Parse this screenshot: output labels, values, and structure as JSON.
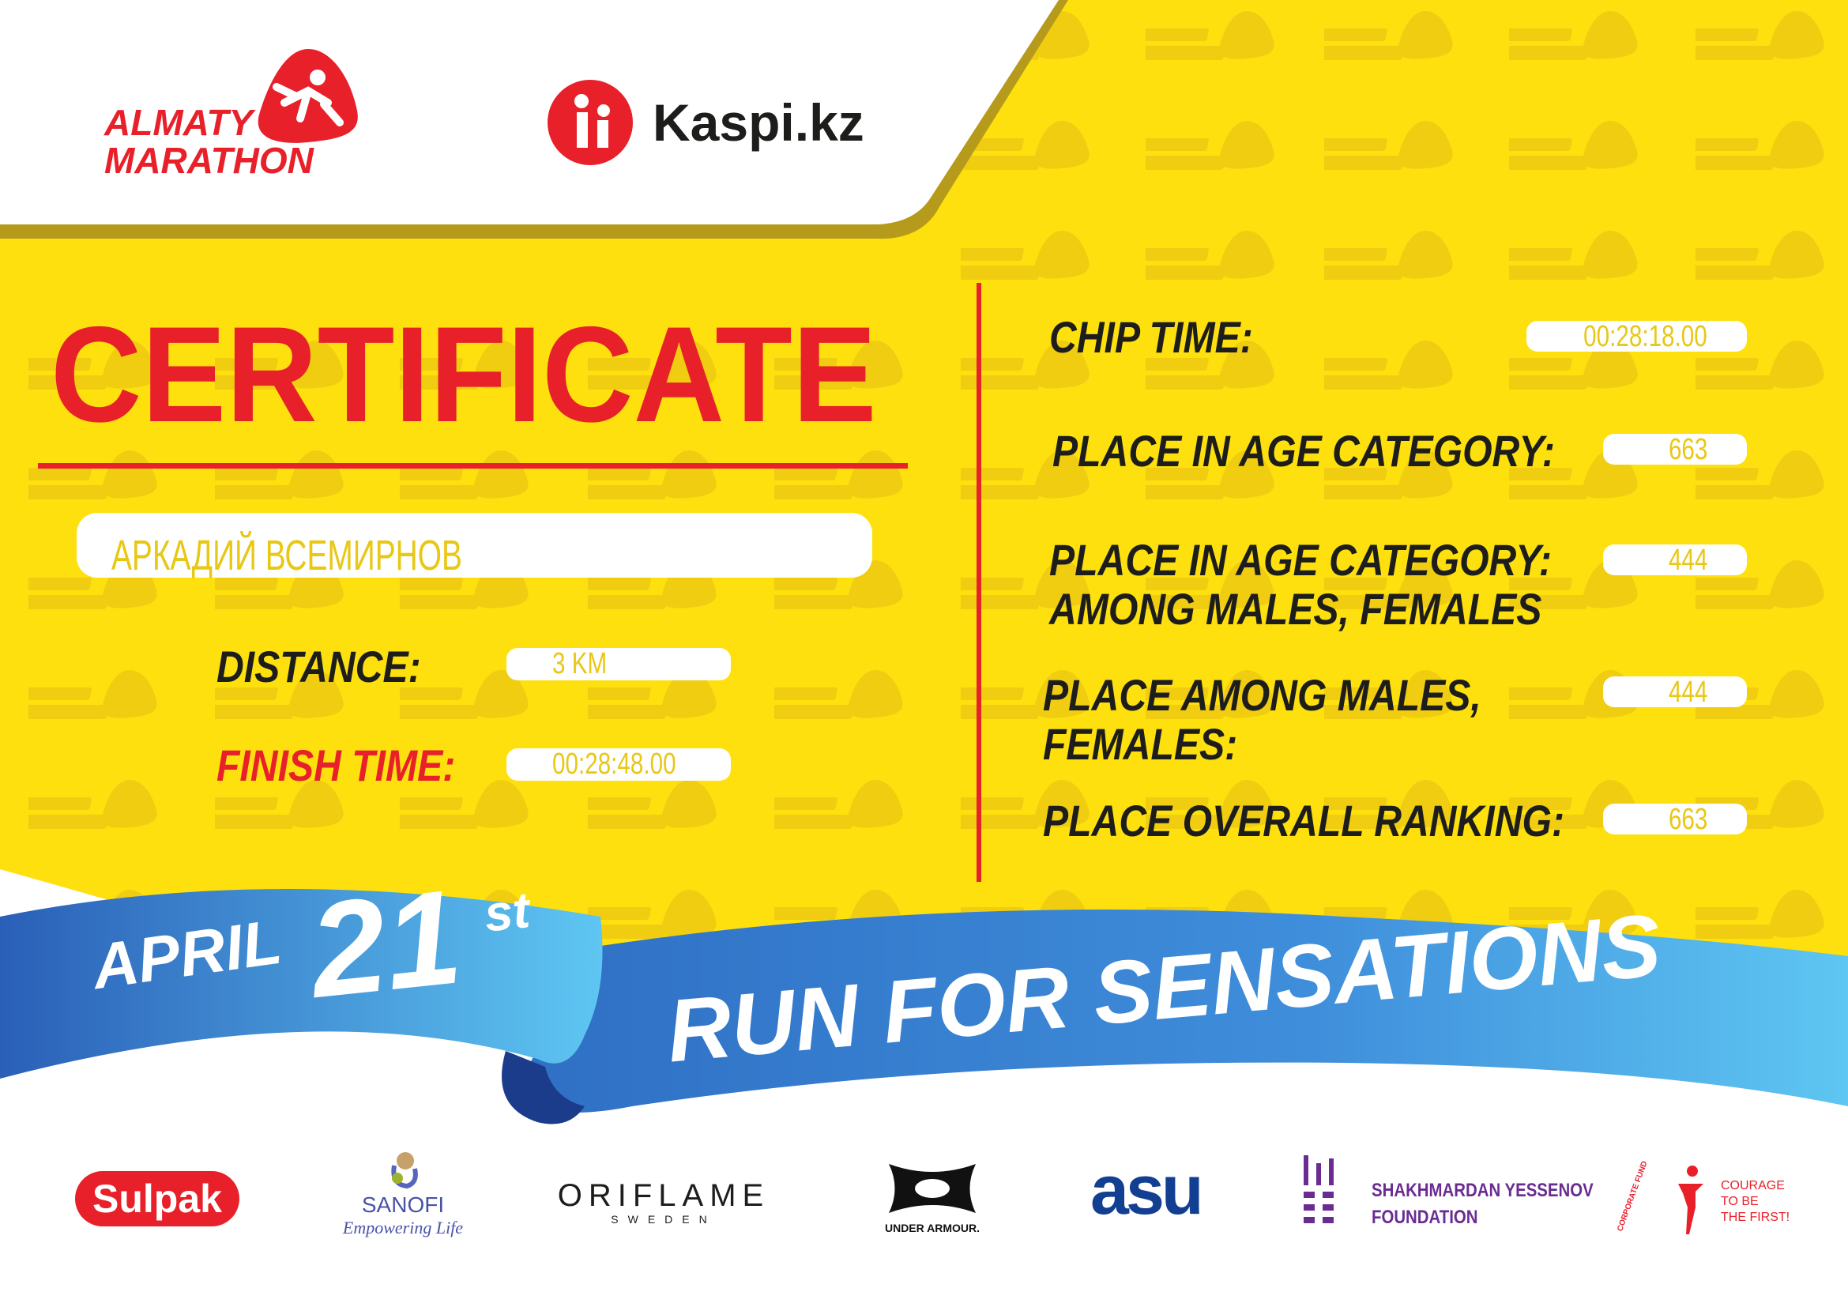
{
  "watermark": {
    "line1": "ALMATY",
    "line2": "MARATHON"
  },
  "header": {
    "logo": {
      "line1": "ALMATY",
      "line2": "MARATHON"
    },
    "partner": "Kaspi.kz"
  },
  "certificate": {
    "title": "CERTIFICATE",
    "name": "АРКАДИЙ ВСЕМИРНОВ",
    "distance_label": "DISTANCE:",
    "distance": "3 KM",
    "finish_label": "FINISH TIME:",
    "finish_time": "00:28:48.00",
    "chip_label": "CHIP TIME:",
    "chip_time": "00:28:18.00",
    "age_place_label": "PLACE IN AGE CATEGORY:",
    "age_place": "663",
    "age_gender_label_1": "PLACE IN AGE CATEGORY:",
    "age_gender_label_2": "AMONG MALES, FEMALES",
    "age_gender_place": "444",
    "gender_label_1": "PLACE AMONG MALES,",
    "gender_label_2": "FEMALES:",
    "gender_place": "444",
    "overall_label": "PLACE OVERALL RANKING:",
    "overall_place": "663"
  },
  "ribbon": {
    "month": "APRIL",
    "day": "21",
    "suffix": "st",
    "slogan": "RUN FOR SENSATIONS"
  },
  "sponsors": {
    "sulpak": "Sulpak",
    "sanofi": "SANOFI",
    "sanofi_tag": "Empowering Life",
    "oriflame": "ORIFLAME",
    "oriflame_sub": "SWEDEN",
    "underarmour": "UNDER ARMOUR.",
    "asu": "asu",
    "yessenov_1": "SHAKHMARDAN YESSENOV",
    "yessenov_2": "FOUNDATION",
    "fund_arc": "CORPORATE FUND",
    "courage_1": "COURAGE",
    "courage_2": "TO BE",
    "courage_3": "THE FIRST!"
  },
  "colors": {
    "yellow": "#fde00e",
    "red": "#e8202a",
    "dark": "#1d1d1b",
    "blue": "#2f6fc4",
    "light_blue": "#5cc3f0"
  }
}
